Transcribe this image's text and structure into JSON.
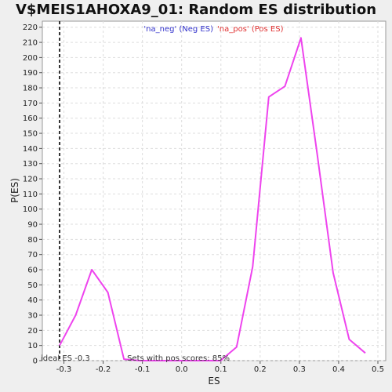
{
  "chart_data": {
    "type": "line",
    "title": "V$MEIS1AHOXA9_01: Random ES distribution",
    "xlabel": "ES",
    "ylabel": "P(ES)",
    "xlim": [
      -0.355,
      0.52
    ],
    "ylim": [
      0,
      224
    ],
    "x_ticks": [
      -0.3,
      -0.2,
      -0.1,
      0.0,
      0.1,
      0.2,
      0.3,
      0.4,
      0.5
    ],
    "x_tick_labels": [
      "-0.3",
      "-0.2",
      "-0.1",
      "0.0",
      "0.1",
      "0.2",
      "0.3",
      "0.4",
      "0.5"
    ],
    "y_ticks": [
      0,
      10,
      20,
      30,
      40,
      50,
      60,
      70,
      80,
      90,
      100,
      110,
      120,
      130,
      140,
      150,
      160,
      170,
      180,
      190,
      200,
      210,
      220
    ],
    "y_tick_labels": [
      "0",
      "10",
      "20",
      "30",
      "40",
      "50",
      "60",
      "70",
      "80",
      "90",
      "100",
      "110",
      "120",
      "130",
      "140",
      "150",
      "160",
      "170",
      "180",
      "190",
      "200",
      "210",
      "220"
    ],
    "grid": true,
    "legend": [
      {
        "label": "'na_neg' (Neg ES)",
        "color": "#3333cc"
      },
      {
        "label": "'na_pos' (Pos ES)",
        "color": "#e03030"
      }
    ],
    "series": [
      {
        "color": "#ee44ee",
        "x": [
          -0.311,
          -0.27,
          -0.229,
          -0.188,
          -0.147,
          -0.106,
          -0.065,
          -0.024,
          0.017,
          0.058,
          0.099,
          0.14,
          0.181,
          0.222,
          0.263,
          0.304,
          0.345,
          0.386,
          0.427,
          0.468
        ],
        "y": [
          10,
          30,
          60,
          45,
          1,
          0,
          0,
          0,
          0,
          0,
          0,
          9,
          62,
          174,
          181,
          213,
          137,
          58,
          14,
          5
        ]
      }
    ],
    "marker_line": {
      "x": -0.311,
      "label": "ideal ES -0.3",
      "style": "dashed",
      "color": "#333333"
    },
    "annotation": "Sets with pos scores: 85%"
  }
}
